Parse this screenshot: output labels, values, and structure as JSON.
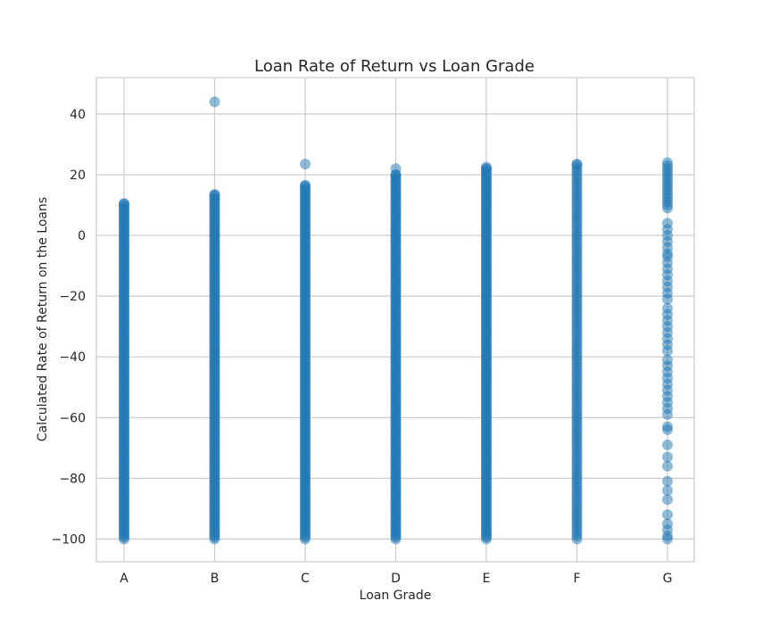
{
  "chart_data": {
    "type": "scatter",
    "title": "Loan Rate of Return vs Loan Grade",
    "xlabel": "Loan Grade",
    "ylabel": "Calculated Rate of Return on the Loans",
    "categories": [
      "A",
      "B",
      "C",
      "D",
      "E",
      "F",
      "G"
    ],
    "ylim": [
      -107.5,
      52
    ],
    "yticks": [
      -100,
      -80,
      -60,
      -40,
      -20,
      0,
      20,
      40
    ],
    "grid": true,
    "marker_color": "#1f77b4",
    "series": [
      {
        "category": "A",
        "density": "dense",
        "range": [
          -100,
          10.5
        ],
        "outliers": []
      },
      {
        "category": "B",
        "density": "dense",
        "range": [
          -100,
          13.5
        ],
        "outliers": [
          44
        ]
      },
      {
        "category": "C",
        "density": "dense",
        "range": [
          -100,
          16.5
        ],
        "outliers": [
          23.5
        ]
      },
      {
        "category": "D",
        "density": "dense",
        "range": [
          -100,
          20
        ],
        "outliers": [
          22
        ]
      },
      {
        "category": "E",
        "density": "dense",
        "range": [
          -100,
          22
        ],
        "outliers": [
          22.5
        ]
      },
      {
        "category": "F",
        "density": "medium",
        "range": [
          -100,
          23.5
        ],
        "outliers": []
      },
      {
        "category": "G",
        "density": "sparse",
        "range": [
          -100,
          24
        ],
        "outliers": [],
        "points": [
          24,
          23,
          22,
          21,
          20,
          19,
          18,
          17,
          16,
          15,
          14,
          13,
          12,
          11,
          10,
          9,
          4,
          2,
          0,
          -2,
          -4,
          -6,
          -7,
          -9,
          -11,
          -13,
          -15,
          -17,
          -19,
          -21,
          -24,
          -26,
          -28,
          -30,
          -32,
          -34,
          -36,
          -38,
          -41,
          -43,
          -45,
          -47,
          -49,
          -51,
          -53,
          -55,
          -57,
          -59,
          -63,
          -64,
          -69,
          -73,
          -76,
          -81,
          -84,
          -87,
          -92,
          -95,
          -97,
          -99,
          -100
        ]
      }
    ]
  }
}
